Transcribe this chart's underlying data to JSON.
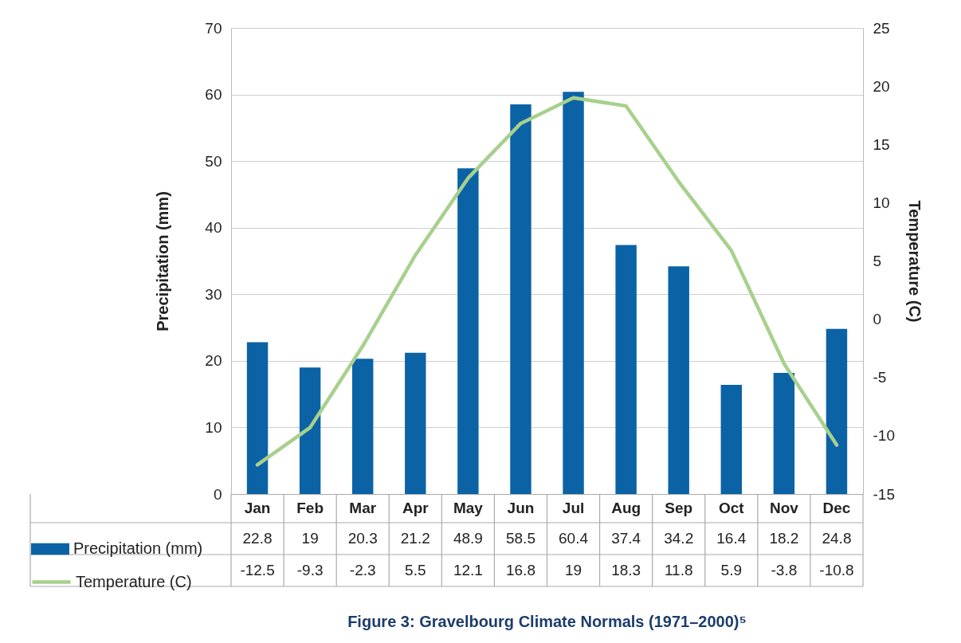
{
  "chart_data": {
    "type": "bar",
    "title": "Figure 3: Gravelbourg Climate Normals (1971–2000)⁵",
    "ylabel": "Precipitation (mm)",
    "y2label": "Temperature (C)",
    "categories": [
      "Jan",
      "Feb",
      "Mar",
      "Apr",
      "May",
      "Jun",
      "Jul",
      "Aug",
      "Sep",
      "Oct",
      "Nov",
      "Dec"
    ],
    "series": [
      {
        "name": "Precipitation (mm)",
        "color": "#0b63a5",
        "values": [
          22.8,
          19,
          20.3,
          21.2,
          48.9,
          58.5,
          60.4,
          37.4,
          34.2,
          16.4,
          18.2,
          24.8
        ]
      },
      {
        "name": "Temperature (C)",
        "type": "line",
        "axis": "y2",
        "color": "#a8d08d",
        "values": [
          -12.5,
          -9.3,
          -2.3,
          5.5,
          12.1,
          16.8,
          19,
          18.3,
          11.8,
          5.9,
          -3.8,
          -10.8
        ]
      }
    ],
    "ylim": [
      0,
      70
    ],
    "yticks": [
      0,
      10,
      20,
      30,
      40,
      50,
      60,
      70
    ],
    "y2lim": [
      -15,
      25
    ],
    "y2ticks": [
      -15,
      -10,
      -5,
      0,
      5,
      10,
      15,
      20,
      25
    ],
    "grid": "y",
    "legend": "bottom left",
    "data_labels": true
  }
}
